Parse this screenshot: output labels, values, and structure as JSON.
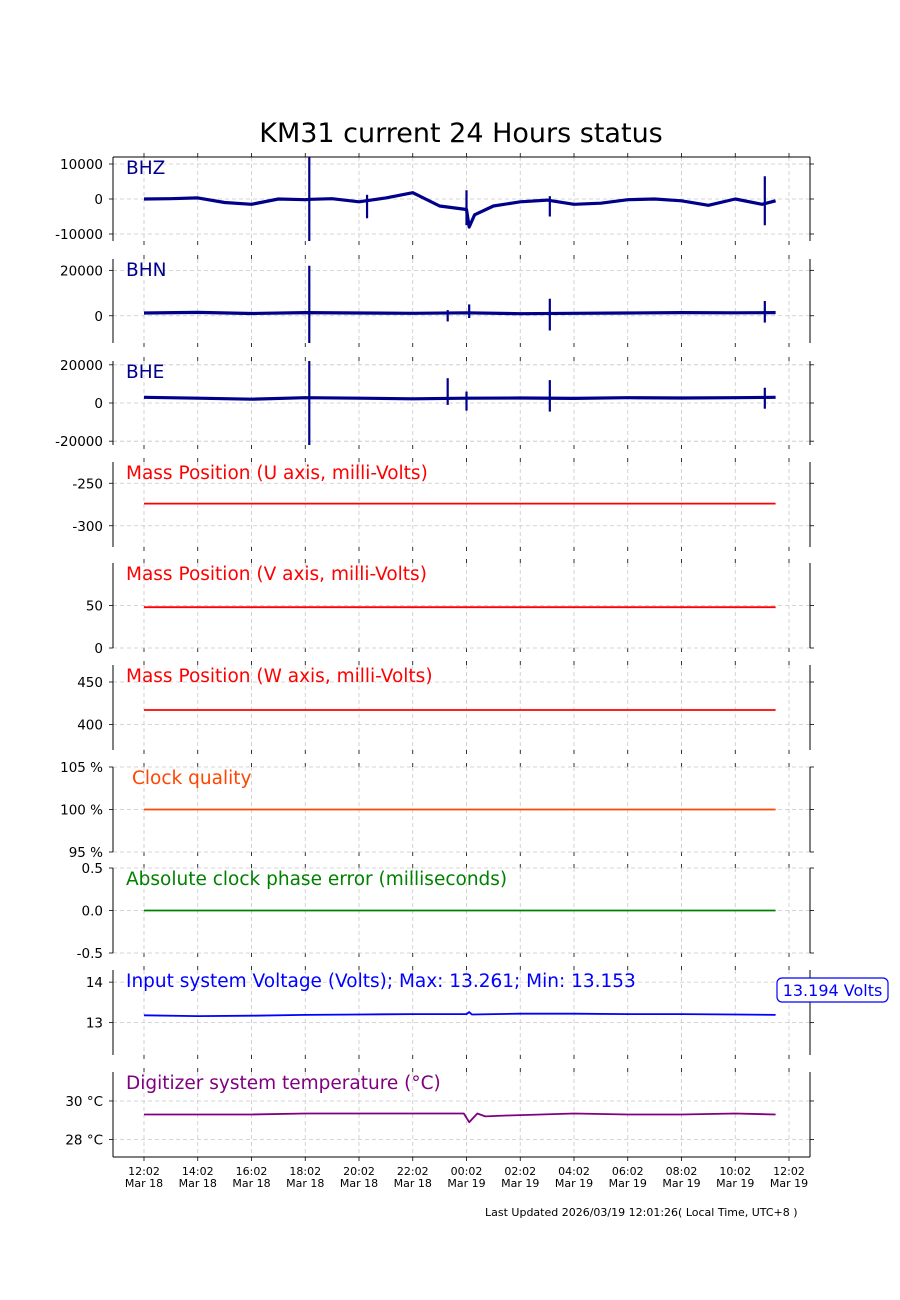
{
  "title": "KM31 current 24 Hours status",
  "footer": "Last Updated 2026/03/19 12:01:26( Local Time, UTC+8 )",
  "x_ticks": [
    {
      "l1": "12:02",
      "l2": "Mar 18"
    },
    {
      "l1": "14:02",
      "l2": "Mar 18"
    },
    {
      "l1": "16:02",
      "l2": "Mar 18"
    },
    {
      "l1": "18:02",
      "l2": "Mar 18"
    },
    {
      "l1": "20:02",
      "l2": "Mar 18"
    },
    {
      "l1": "22:02",
      "l2": "Mar 18"
    },
    {
      "l1": "00:02",
      "l2": "Mar 19"
    },
    {
      "l1": "02:02",
      "l2": "Mar 19"
    },
    {
      "l1": "04:02",
      "l2": "Mar 19"
    },
    {
      "l1": "06:02",
      "l2": "Mar 19"
    },
    {
      "l1": "08:02",
      "l2": "Mar 19"
    },
    {
      "l1": "10:02",
      "l2": "Mar 19"
    },
    {
      "l1": "12:02",
      "l2": "Mar 19"
    }
  ],
  "chart_data": [
    {
      "type": "line",
      "label": "BHZ",
      "color": "#00008b",
      "ylim": [
        -12000,
        12000
      ],
      "yticks": [
        {
          "v": 10000,
          "t": "10000"
        },
        {
          "v": 0,
          "t": "0"
        },
        {
          "v": -10000,
          "t": "-10000"
        }
      ],
      "x_hours": [
        0,
        1,
        2,
        3,
        4,
        5,
        6,
        6.2,
        7,
        8,
        9,
        10,
        11,
        12,
        12.1,
        12.3,
        13,
        14,
        15,
        16,
        17,
        18,
        19,
        20,
        21,
        22,
        23,
        23.5
      ],
      "values": [
        0,
        100,
        300,
        -1000,
        -1500,
        0,
        -200,
        -100,
        100,
        -800,
        300,
        1800,
        -2000,
        -3000,
        -8000,
        -4500,
        -2000,
        -800,
        -300,
        -1500,
        -1200,
        -200,
        0,
        -500,
        -1800,
        0,
        -1500,
        -500
      ],
      "spikes": [
        {
          "x": 6.15,
          "min": -12000,
          "max": 12000
        },
        {
          "x": 8.3,
          "min": -5500,
          "max": 1200
        },
        {
          "x": 12.0,
          "min": -7500,
          "max": 2500
        },
        {
          "x": 15.1,
          "min": -5000,
          "max": 800
        },
        {
          "x": 23.1,
          "min": -7500,
          "max": 6500
        }
      ]
    },
    {
      "type": "line",
      "label": "BHN",
      "color": "#00008b",
      "ylim": [
        -12000,
        25000
      ],
      "yticks": [
        {
          "v": 20000,
          "t": "20000"
        },
        {
          "v": 0,
          "t": "0"
        }
      ],
      "x_hours": [
        0,
        2,
        4,
        6,
        8,
        10,
        12,
        14,
        16,
        18,
        20,
        22,
        23.5
      ],
      "values": [
        1200,
        1500,
        1000,
        1400,
        1200,
        1100,
        1300,
        900,
        1100,
        1200,
        1400,
        1300,
        1400
      ],
      "spikes": [
        {
          "x": 6.15,
          "min": -12000,
          "max": 22000
        },
        {
          "x": 11.3,
          "min": -2500,
          "max": 2500
        },
        {
          "x": 12.1,
          "min": -1000,
          "max": 5000
        },
        {
          "x": 15.1,
          "min": -6500,
          "max": 7500
        },
        {
          "x": 23.1,
          "min": -3000,
          "max": 6500
        }
      ]
    },
    {
      "type": "line",
      "label": "BHE",
      "color": "#00008b",
      "ylim": [
        -22000,
        22000
      ],
      "yticks": [
        {
          "v": 20000,
          "t": "20000"
        },
        {
          "v": 0,
          "t": "0"
        },
        {
          "v": -20000,
          "t": "-20000"
        }
      ],
      "x_hours": [
        0,
        2,
        4,
        6,
        8,
        10,
        12,
        14,
        16,
        18,
        20,
        22,
        23.5
      ],
      "values": [
        3000,
        2500,
        2000,
        2800,
        2500,
        2200,
        2500,
        2600,
        2400,
        2800,
        2600,
        2800,
        3000
      ],
      "spikes": [
        {
          "x": 6.15,
          "min": -22000,
          "max": 22000
        },
        {
          "x": 11.3,
          "min": -1000,
          "max": 13000
        },
        {
          "x": 12.0,
          "min": -4000,
          "max": 6000
        },
        {
          "x": 15.1,
          "min": -4500,
          "max": 12000
        },
        {
          "x": 23.1,
          "min": -3000,
          "max": 8000
        }
      ]
    },
    {
      "type": "line",
      "label": "Mass Position (U axis, milli-Volts)",
      "color": "#ff0000",
      "ylim": [
        -325,
        -225
      ],
      "yticks": [
        {
          "v": -250,
          "t": "-250"
        },
        {
          "v": -300,
          "t": "-300"
        }
      ],
      "x_hours": [
        0,
        23.5
      ],
      "values": [
        -274,
        -274
      ],
      "spikes": []
    },
    {
      "type": "line",
      "label": "Mass Position (V axis, milli-Volts)",
      "color": "#ff0000",
      "ylim": [
        0,
        100
      ],
      "yticks": [
        {
          "v": 50,
          "t": "50"
        },
        {
          "v": 0,
          "t": "0"
        }
      ],
      "x_hours": [
        0,
        23.5
      ],
      "values": [
        48,
        48
      ],
      "spikes": []
    },
    {
      "type": "line",
      "label": "Mass Position (W axis, milli-Volts)",
      "color": "#ff0000",
      "ylim": [
        370,
        470
      ],
      "yticks": [
        {
          "v": 450,
          "t": "450"
        },
        {
          "v": 400,
          "t": "400"
        }
      ],
      "x_hours": [
        0,
        23.5
      ],
      "values": [
        417,
        417
      ],
      "spikes": []
    },
    {
      "type": "line",
      "label": "Clock quality",
      "color": "#ff4500",
      "ylim": [
        95,
        105
      ],
      "yticks": [
        {
          "v": 105,
          "t": "105 %"
        },
        {
          "v": 100,
          "t": "100 %"
        },
        {
          "v": 95,
          "t": "95 %"
        }
      ],
      "x_hours": [
        0,
        23.5
      ],
      "values": [
        100,
        100
      ],
      "spikes": []
    },
    {
      "type": "line",
      "label": "Absolute clock phase error (milliseconds)",
      "color": "#008000",
      "ylim": [
        -0.5,
        0.5
      ],
      "yticks": [
        {
          "v": 0.5,
          "t": "0.5"
        },
        {
          "v": 0.0,
          "t": "0.0"
        },
        {
          "v": -0.5,
          "t": "-0.5"
        }
      ],
      "x_hours": [
        0,
        23.5
      ],
      "values": [
        0,
        0
      ],
      "spikes": []
    },
    {
      "type": "line",
      "label": "Input system Voltage (Volts);    Max: 13.261; Min: 13.153",
      "color": "#0000ff",
      "ylim": [
        12.2,
        14.3
      ],
      "yticks": [
        {
          "v": 14,
          "t": "14"
        },
        {
          "v": 13,
          "t": "13"
        }
      ],
      "x_hours": [
        0,
        2,
        4,
        6,
        8,
        10,
        12,
        12.1,
        12.2,
        14,
        16,
        18,
        20,
        22,
        23.5
      ],
      "values": [
        13.18,
        13.16,
        13.17,
        13.19,
        13.2,
        13.21,
        13.21,
        13.26,
        13.2,
        13.22,
        13.22,
        13.21,
        13.21,
        13.2,
        13.19
      ],
      "spikes": [],
      "annotation": "13.194 Volts"
    },
    {
      "type": "line",
      "label": "Digitizer system temperature (°C)",
      "color": "#800080",
      "ylim": [
        27.1,
        31.5
      ],
      "yticks": [
        {
          "v": 30,
          "t": "30 °C"
        },
        {
          "v": 28,
          "t": "28 °C"
        }
      ],
      "x_hours": [
        0,
        2,
        4,
        6,
        8,
        10,
        11.9,
        12.1,
        12.4,
        12.7,
        13.5,
        16,
        18,
        20,
        22,
        23.5
      ],
      "values": [
        29.3,
        29.3,
        29.3,
        29.35,
        29.35,
        29.35,
        29.35,
        28.9,
        29.35,
        29.2,
        29.25,
        29.35,
        29.3,
        29.3,
        29.35,
        29.3
      ],
      "spikes": []
    }
  ]
}
